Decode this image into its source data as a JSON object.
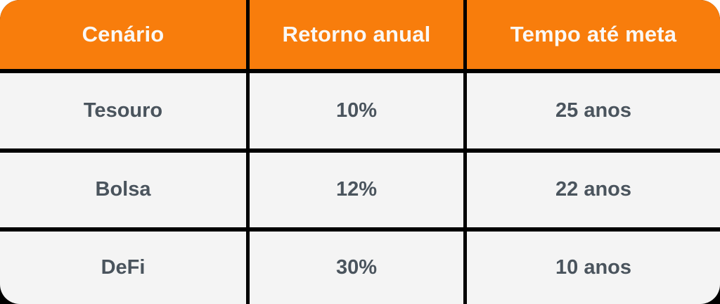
{
  "chart_data": {
    "type": "table",
    "title": "",
    "headers": [
      "Cenário",
      "Retorno anual",
      "Tempo até meta"
    ],
    "rows": [
      [
        "Tesouro",
        "10%",
        "25 anos"
      ],
      [
        "Bolsa",
        "12%",
        "22 anos"
      ],
      [
        "DeFi",
        "30%",
        "10 anos"
      ]
    ],
    "categories": [
      "Tesouro",
      "Bolsa",
      "DeFi"
    ],
    "series": [
      {
        "name": "Retorno anual (%)",
        "values": [
          10,
          12,
          30
        ]
      },
      {
        "name": "Tempo até meta (anos)",
        "values": [
          25,
          22,
          10
        ]
      }
    ],
    "legend_position": "none",
    "grid": true
  },
  "colors": {
    "header_bg": "#F87D0C",
    "header_text": "#FAF8F5",
    "cell_bg": "#F4F4F4",
    "cell_text": "#4A545D",
    "grid_line": "#000000",
    "page_bg": "#FFFFFF"
  }
}
